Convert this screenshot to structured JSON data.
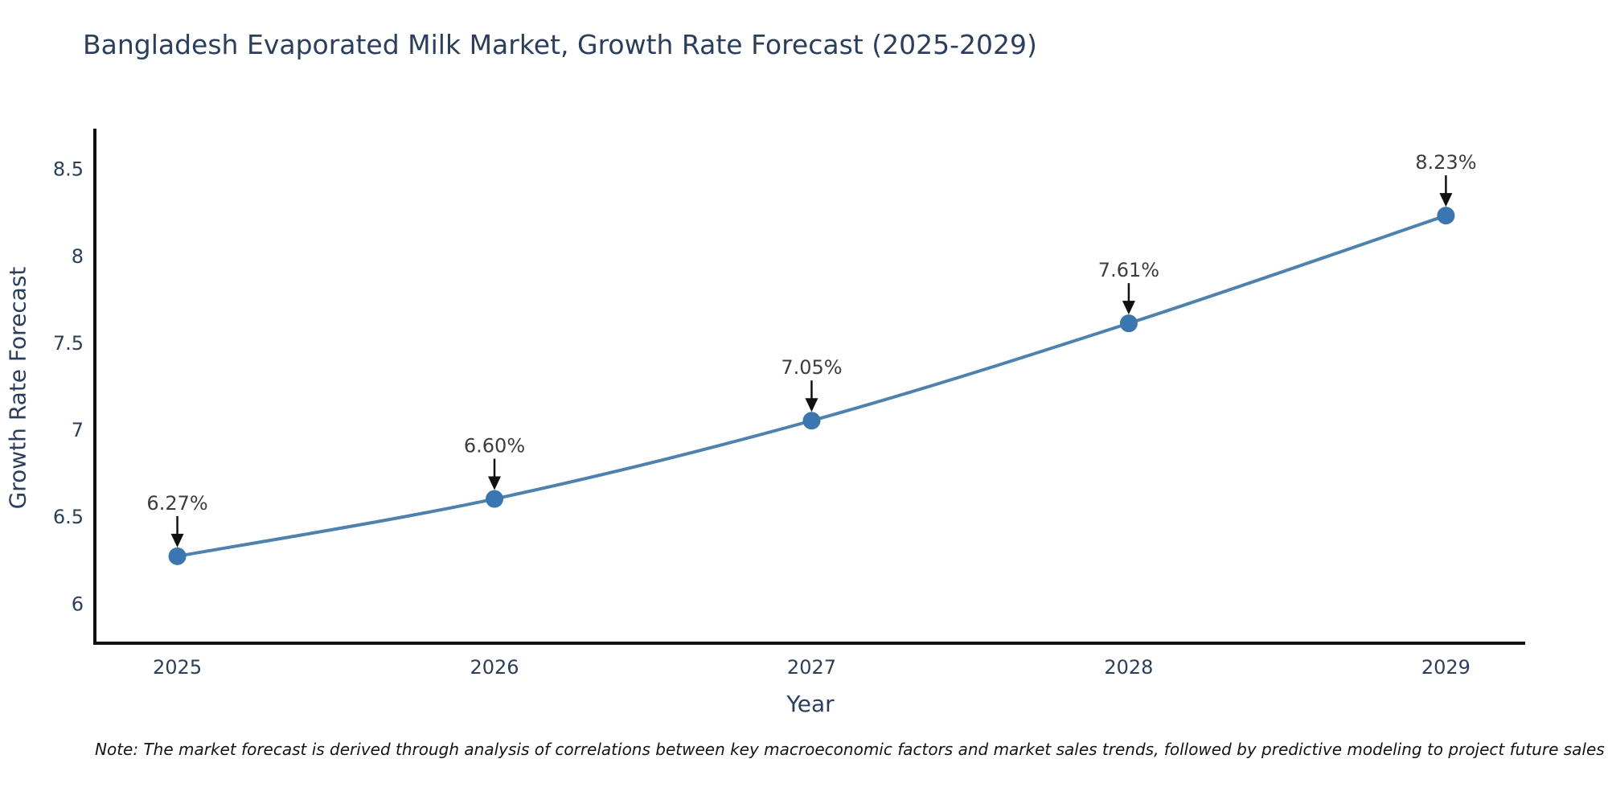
{
  "title": "Bangladesh Evaporated Milk Market, Growth Rate Forecast (2025-2029)",
  "note": "Note: The market forecast is derived through analysis of correlations between key macroeconomic factors and market sales trends, followed by predictive modeling to project future sales",
  "chart_data": {
    "type": "line",
    "title": "Bangladesh Evaporated Milk Market, Growth Rate Forecast (2025-2029)",
    "xlabel": "Year",
    "ylabel": "Growth Rate Forecast",
    "x": [
      2025,
      2026,
      2027,
      2028,
      2029
    ],
    "values": [
      6.27,
      6.6,
      7.05,
      7.61,
      8.23
    ],
    "point_labels": [
      "6.27%",
      "6.60%",
      "7.05%",
      "7.61%",
      "8.23%"
    ],
    "series_name": "Growth Rate Forecast",
    "xtick_labels": [
      "2025",
      "2026",
      "2027",
      "2028",
      "2029"
    ],
    "ytick_values": [
      6,
      6.5,
      7,
      7.5,
      8,
      8.5
    ],
    "ytick_labels": [
      "6",
      "6.5",
      "7",
      "7.5",
      "8",
      "8.5"
    ],
    "xlim": [
      2024.74,
      2029.25
    ],
    "ylim": [
      5.77,
      8.73
    ],
    "grid": false,
    "legend_position": "none",
    "line_shape": "spline",
    "annotations_have_arrows": true,
    "colors": {
      "line": "#4a82b4",
      "marker": "#3a76b1",
      "axis": "#111111",
      "tick_text": "#2a3f5f",
      "annotation_text": "#3d3d3d",
      "arrow": "#111111",
      "background": "#ffffff"
    }
  }
}
